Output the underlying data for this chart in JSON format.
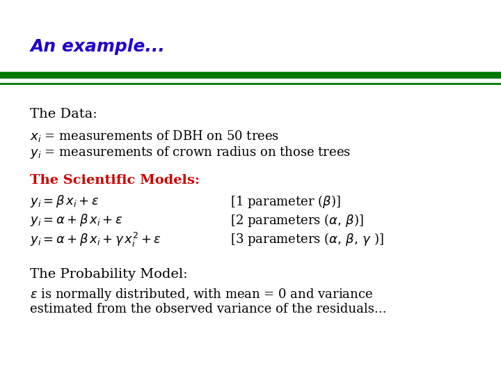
{
  "title": "An example...",
  "title_color": "#2200cc",
  "title_fontsize": 18,
  "bg_color": "#ffffff",
  "line_color": "#007700",
  "section_data_title": "The Data:",
  "section_data_body1": "$x_i$ = measurements of DBH on 50 trees",
  "section_data_body2": "$y_i$ = measurements of crown radius on those trees",
  "section_models_title": "The Scientific Models:",
  "section_models_title_color": "#cc0000",
  "model1": "$y_i = \\beta\\, x_i + \\varepsilon$",
  "model1_param": "[1 parameter ($\\beta$)]",
  "model2": "$y_i = \\alpha + \\beta\\, x_i + \\varepsilon$",
  "model2_param": "[2 parameters ($\\alpha,\\, \\beta$)]",
  "model3": "$y_i = \\alpha + \\beta\\, x_i + \\gamma\\, x_i^2 + \\varepsilon$",
  "model3_param": "[3 parameters ($\\alpha,\\, \\beta,\\, \\gamma$ )]",
  "section_prob_title": "The Probability Model:",
  "section_prob_body1": "$\\varepsilon$ is normally distributed, with mean = 0 and variance",
  "section_prob_body2": "estimated from the observed variance of the residuals...",
  "text_fontsize": 13,
  "header_fontsize": 14,
  "models_fontsize": 13
}
